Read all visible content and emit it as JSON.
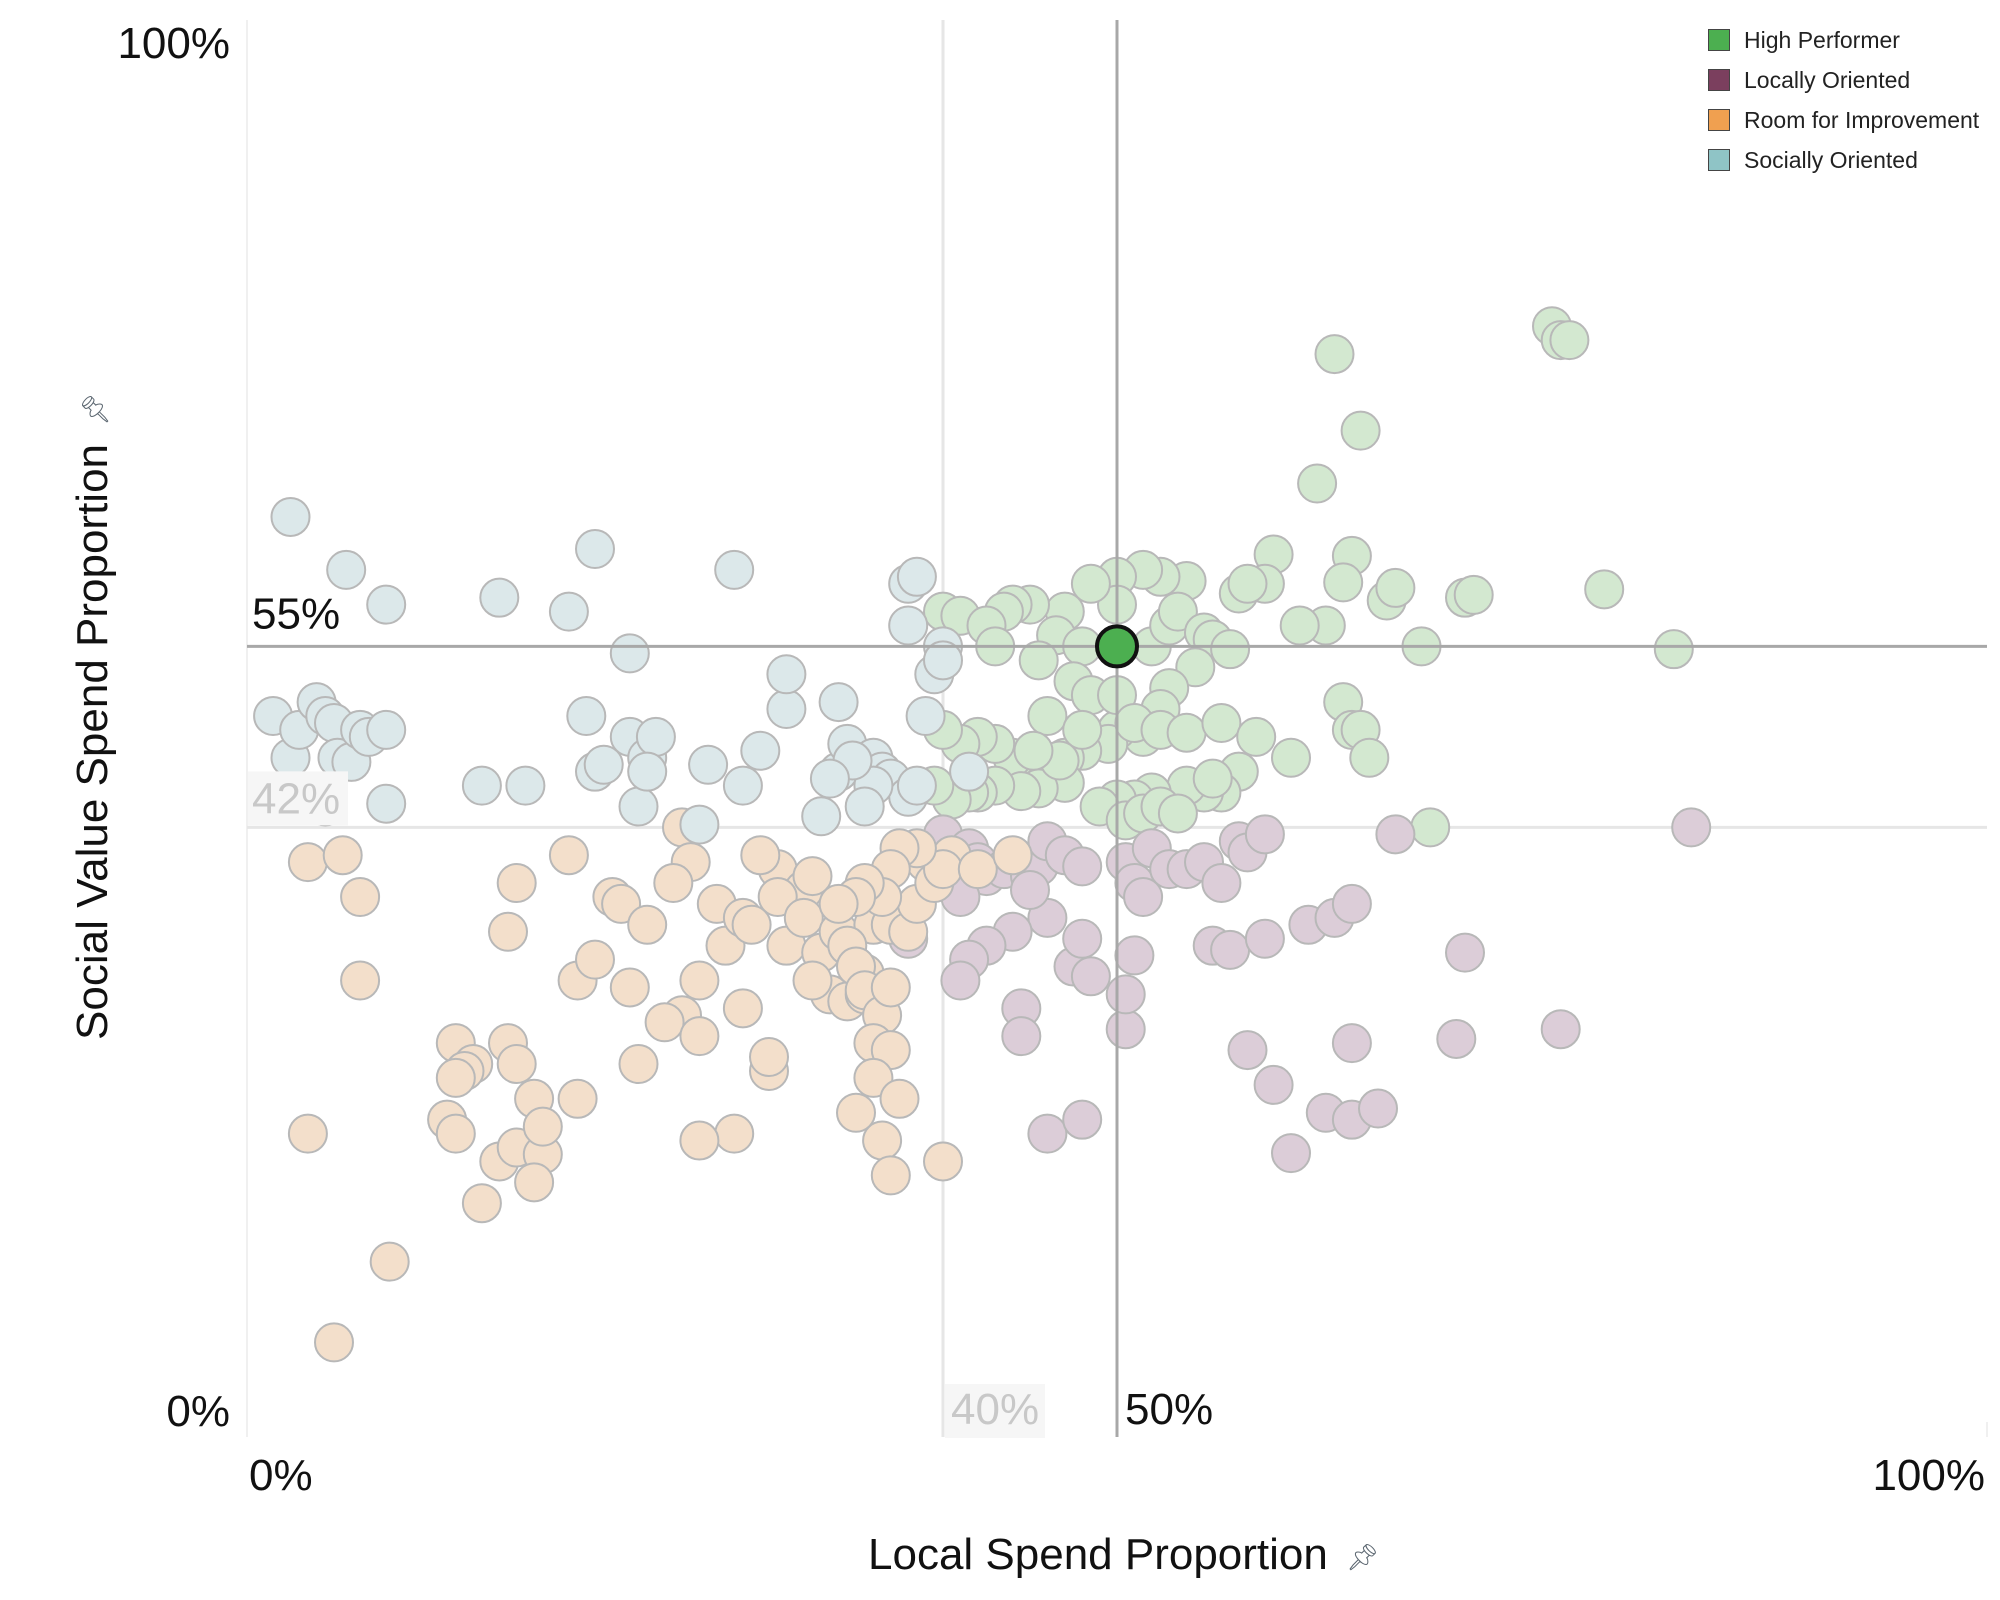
{
  "legend": [
    {
      "label": "High Performer",
      "color": "#4caf50"
    },
    {
      "label": "Locally Oriented",
      "color": "#7b3f5e"
    },
    {
      "label": "Room for Improvement",
      "color": "#f0a050"
    },
    {
      "label": "Socially Oriented",
      "color": "#8fc4c6"
    }
  ],
  "icons": {
    "x_pin": "pin-icon",
    "y_pin": "pin-icon"
  },
  "chart_data": {
    "type": "scatter",
    "xlabel": "Local Spend Proportion",
    "ylabel": "Social Value Spend Proportion",
    "xlim": [
      0,
      100
    ],
    "ylim": [
      0,
      100
    ],
    "x_tick_labels": {
      "min": "0%",
      "max": "100%"
    },
    "y_tick_labels": {
      "min": "0%",
      "max": "100%"
    },
    "reference_lines": {
      "x_primary": {
        "value": 50,
        "label": "50%"
      },
      "x_secondary": {
        "value": 40,
        "label": "40%"
      },
      "y_primary": {
        "value": 55,
        "label": "55%"
      },
      "y_secondary": {
        "value": 42,
        "label": "42%"
      }
    },
    "highlight": {
      "x": 50,
      "y": 55,
      "category": "High Performer"
    },
    "category_colors": {
      "High Performer": "#d3e8d0",
      "Locally Oriented": "#dccdd8",
      "Room for Improvement": "#f3dfcb",
      "Socially Oriented": "#dce8ea"
    },
    "series": [
      {
        "name": "High Performer",
        "points": [
          [
            75,
            78
          ],
          [
            75.5,
            77
          ],
          [
            76,
            77
          ],
          [
            62.5,
            76
          ],
          [
            64,
            70.5
          ],
          [
            61.5,
            66.7
          ],
          [
            59,
            61.6
          ],
          [
            63.5,
            61.5
          ],
          [
            58.5,
            59.5
          ],
          [
            63,
            59.6
          ],
          [
            65.5,
            58.3
          ],
          [
            66,
            59.2
          ],
          [
            70,
            58.5
          ],
          [
            70.5,
            58.7
          ],
          [
            78,
            59.1
          ],
          [
            82,
            54.8
          ],
          [
            67.5,
            55
          ],
          [
            62,
            56.5
          ],
          [
            60.5,
            56.5
          ],
          [
            57,
            58.8
          ],
          [
            57.5,
            59.5
          ],
          [
            54,
            59.7
          ],
          [
            52.5,
            60
          ],
          [
            51.5,
            60.5
          ],
          [
            50,
            60
          ],
          [
            50,
            58
          ],
          [
            48.5,
            59.5
          ],
          [
            47,
            57.5
          ],
          [
            45,
            58
          ],
          [
            44,
            58
          ],
          [
            43.5,
            57.5
          ],
          [
            40,
            57.5
          ],
          [
            41,
            57.2
          ],
          [
            42.5,
            56.5
          ],
          [
            43,
            55
          ],
          [
            46.5,
            55.8
          ],
          [
            48,
            55
          ],
          [
            50,
            55
          ],
          [
            52,
            55
          ],
          [
            53,
            56.5
          ],
          [
            53.5,
            57.5
          ],
          [
            55,
            56
          ],
          [
            55.5,
            55.5
          ],
          [
            56.5,
            54.8
          ],
          [
            54.5,
            53.5
          ],
          [
            53,
            52
          ],
          [
            52.5,
            50.5
          ],
          [
            51.5,
            48.5
          ],
          [
            50,
            49
          ],
          [
            49.5,
            48
          ],
          [
            48,
            47.5
          ],
          [
            47,
            47
          ],
          [
            46,
            45.5
          ],
          [
            45,
            45
          ],
          [
            44,
            47
          ],
          [
            43,
            48
          ],
          [
            42,
            48.5
          ],
          [
            41,
            48
          ],
          [
            40,
            49
          ],
          [
            45.5,
            54
          ],
          [
            47.5,
            52.5
          ],
          [
            48.5,
            51.5
          ],
          [
            50,
            51.5
          ],
          [
            51,
            49.5
          ],
          [
            52.5,
            49
          ],
          [
            54,
            48.8
          ],
          [
            56,
            49.5
          ],
          [
            58,
            48.5
          ],
          [
            60,
            47
          ],
          [
            63,
            51
          ],
          [
            63.5,
            49
          ],
          [
            64,
            49
          ],
          [
            57,
            46
          ],
          [
            56,
            44.5
          ],
          [
            55,
            44.5
          ],
          [
            54,
            45
          ],
          [
            52,
            44.5
          ],
          [
            51,
            44
          ],
          [
            50,
            44
          ],
          [
            49,
            43.5
          ],
          [
            47,
            45.2
          ],
          [
            45.5,
            44.8
          ],
          [
            44.5,
            44.6
          ],
          [
            43,
            45
          ],
          [
            42,
            44.5
          ],
          [
            41.5,
            44.5
          ],
          [
            40.5,
            44
          ],
          [
            39.5,
            45
          ],
          [
            64.5,
            47
          ],
          [
            68,
            42
          ],
          [
            50.5,
            42.5
          ],
          [
            51.5,
            43
          ],
          [
            52.5,
            43.5
          ],
          [
            53.5,
            43
          ],
          [
            55.5,
            45.5
          ],
          [
            46,
            50
          ],
          [
            48,
            49
          ],
          [
            46.7,
            46.8
          ],
          [
            45.2,
            47.5
          ]
        ]
      },
      {
        "name": "Locally Oriented",
        "points": [
          [
            40,
            41.5
          ],
          [
            41.5,
            40.5
          ],
          [
            42,
            39.5
          ],
          [
            42.5,
            38.5
          ],
          [
            43.5,
            39
          ],
          [
            45,
            38.5
          ],
          [
            45.5,
            39.2
          ],
          [
            46,
            41
          ],
          [
            47,
            40
          ],
          [
            48,
            39.2
          ],
          [
            50.5,
            39.5
          ],
          [
            51,
            38
          ],
          [
            51.5,
            37
          ],
          [
            52,
            40.5
          ],
          [
            53,
            39
          ],
          [
            54,
            39
          ],
          [
            55,
            39.5
          ],
          [
            56,
            38
          ],
          [
            57,
            41
          ],
          [
            57.5,
            40.2
          ],
          [
            58.5,
            41.5
          ],
          [
            61,
            35
          ],
          [
            62.5,
            35.5
          ],
          [
            63.5,
            36.5
          ],
          [
            66,
            41.5
          ],
          [
            83,
            42
          ],
          [
            70,
            33
          ],
          [
            75.5,
            27.5
          ],
          [
            69.5,
            26.8
          ],
          [
            63.5,
            26.5
          ],
          [
            57.5,
            26
          ],
          [
            59,
            23.5
          ],
          [
            62,
            21.5
          ],
          [
            63.5,
            21
          ],
          [
            65,
            21.8
          ],
          [
            60,
            18.6
          ],
          [
            50.5,
            27.5
          ],
          [
            51,
            32.8
          ],
          [
            50.5,
            30
          ],
          [
            47.5,
            32
          ],
          [
            48,
            34
          ],
          [
            48.5,
            31.3
          ],
          [
            46,
            35.5
          ],
          [
            44,
            34.5
          ],
          [
            42.5,
            33.5
          ],
          [
            41.5,
            32.5
          ],
          [
            41,
            31
          ],
          [
            44.5,
            29
          ],
          [
            44.5,
            27
          ],
          [
            46,
            20
          ],
          [
            48,
            21
          ],
          [
            55.5,
            33.5
          ],
          [
            56.5,
            33.2
          ],
          [
            58.5,
            34
          ],
          [
            41,
            37
          ],
          [
            45,
            37.5
          ],
          [
            38,
            34
          ]
        ]
      },
      {
        "name": "Room for Improvement",
        "points": [
          [
            3.5,
            39.5
          ],
          [
            5.5,
            40
          ],
          [
            6.5,
            37
          ],
          [
            6.5,
            31
          ],
          [
            12,
            26.5
          ],
          [
            13,
            25
          ],
          [
            15,
            26.5
          ],
          [
            15.5,
            25
          ],
          [
            12.5,
            24.5
          ],
          [
            11.5,
            21
          ],
          [
            16.5,
            22.5
          ],
          [
            13.5,
            15
          ],
          [
            12,
            20
          ],
          [
            14.5,
            18
          ],
          [
            15.5,
            19
          ],
          [
            17,
            18.5
          ],
          [
            17,
            20.5
          ],
          [
            16.5,
            16.5
          ],
          [
            19,
            22.5
          ],
          [
            12,
            24
          ],
          [
            15,
            34.5
          ],
          [
            15.5,
            38
          ],
          [
            19,
            31
          ],
          [
            21,
            37
          ],
          [
            21.5,
            36.5
          ],
          [
            23,
            35
          ],
          [
            22,
            30.5
          ],
          [
            22.5,
            25
          ],
          [
            25,
            28.5
          ],
          [
            24,
            28
          ],
          [
            26,
            27
          ],
          [
            27,
            36.5
          ],
          [
            27.5,
            33.5
          ],
          [
            28.5,
            35.5
          ],
          [
            28.5,
            29
          ],
          [
            28,
            20
          ],
          [
            30,
            24.5
          ],
          [
            30.5,
            39
          ],
          [
            32,
            37.5
          ],
          [
            32.5,
            38.5
          ],
          [
            30.5,
            37
          ],
          [
            29,
            35
          ],
          [
            31,
            33.5
          ],
          [
            32,
            35.5
          ],
          [
            33,
            33
          ],
          [
            34,
            34.5
          ],
          [
            33.5,
            30
          ],
          [
            34.5,
            29.5
          ],
          [
            35.5,
            31.5
          ],
          [
            36,
            36.5
          ],
          [
            36,
            35
          ],
          [
            35.5,
            30
          ],
          [
            32.5,
            31
          ],
          [
            30,
            25.5
          ],
          [
            37,
            35
          ],
          [
            38,
            34.5
          ],
          [
            38.5,
            36.5
          ],
          [
            39,
            39.5
          ],
          [
            39.5,
            38
          ],
          [
            40.5,
            40
          ],
          [
            40,
            39
          ],
          [
            38.5,
            40.5
          ],
          [
            37.5,
            40.5
          ],
          [
            37,
            39
          ],
          [
            36.5,
            37
          ],
          [
            35.5,
            38
          ],
          [
            35,
            37
          ],
          [
            34,
            36.5
          ],
          [
            34.5,
            33.5
          ],
          [
            35,
            32
          ],
          [
            35.5,
            30.3
          ],
          [
            36.5,
            28.5
          ],
          [
            37,
            30.5
          ],
          [
            36,
            26.5
          ],
          [
            37,
            26
          ],
          [
            36,
            24
          ],
          [
            37.5,
            22.5
          ],
          [
            36.5,
            19.5
          ],
          [
            37,
            17
          ],
          [
            40,
            18
          ],
          [
            35,
            21.5
          ],
          [
            42,
            39
          ],
          [
            44,
            40
          ],
          [
            25,
            42
          ],
          [
            25.5,
            39.5
          ],
          [
            24.5,
            38
          ],
          [
            26,
            31
          ],
          [
            26,
            19.5
          ],
          [
            3.5,
            20
          ],
          [
            5,
            5
          ],
          [
            8.2,
            10.8
          ],
          [
            18.5,
            40
          ],
          [
            20,
            32.5
          ],
          [
            29.5,
            40
          ]
        ]
      },
      {
        "name": "Socially Oriented",
        "points": [
          [
            2.5,
            64.3
          ],
          [
            5.7,
            60.5
          ],
          [
            8,
            58
          ],
          [
            14.5,
            58.5
          ],
          [
            22,
            54.5
          ],
          [
            18.5,
            57.5
          ],
          [
            20,
            62
          ],
          [
            28,
            60.5
          ],
          [
            38,
            59.5
          ],
          [
            38.5,
            60
          ],
          [
            1.5,
            50
          ],
          [
            2.5,
            47
          ],
          [
            3,
            49
          ],
          [
            4,
            51
          ],
          [
            4.5,
            50
          ],
          [
            5,
            49.5
          ],
          [
            5.2,
            47
          ],
          [
            6,
            46.7
          ],
          [
            6.5,
            49
          ],
          [
            7,
            48.5
          ],
          [
            8,
            49
          ],
          [
            4.5,
            43.5
          ],
          [
            8,
            43.7
          ],
          [
            13.5,
            45
          ],
          [
            16,
            45
          ],
          [
            19.5,
            50
          ],
          [
            20,
            46
          ],
          [
            20.5,
            46.5
          ],
          [
            22,
            48.5
          ],
          [
            23,
            47
          ],
          [
            23.5,
            48.5
          ],
          [
            22.5,
            43.5
          ],
          [
            23,
            46
          ],
          [
            26.5,
            46.5
          ],
          [
            28.5,
            45
          ],
          [
            29.5,
            47.5
          ],
          [
            31,
            50.5
          ],
          [
            31,
            53
          ],
          [
            34,
            51
          ],
          [
            34,
            46
          ],
          [
            34.5,
            48
          ],
          [
            36,
            47
          ],
          [
            36.5,
            46
          ],
          [
            37,
            45.5
          ],
          [
            38,
            44.2
          ],
          [
            38.5,
            45
          ],
          [
            39,
            50
          ],
          [
            39.5,
            53
          ],
          [
            40,
            55
          ],
          [
            41.5,
            46
          ],
          [
            36,
            45
          ],
          [
            35.5,
            43.5
          ],
          [
            34.8,
            46.8
          ],
          [
            33.5,
            45.5
          ],
          [
            33,
            42.8
          ],
          [
            26,
            42.2
          ],
          [
            38,
            56.5
          ],
          [
            40,
            54
          ]
        ]
      }
    ]
  }
}
